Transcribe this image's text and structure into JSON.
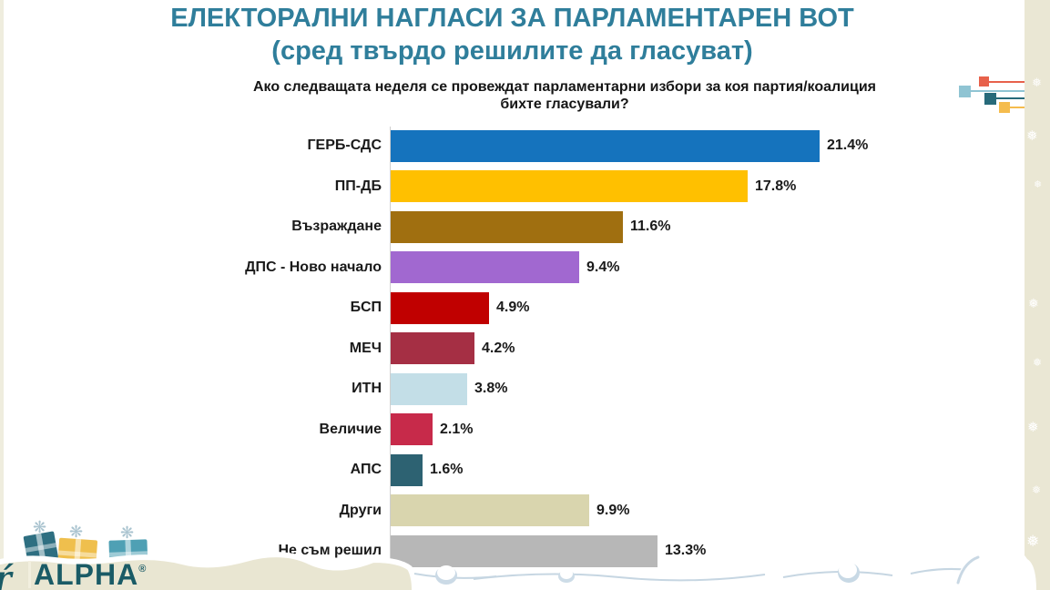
{
  "page": {
    "title_line1": "ЕЛЕКТОРАЛНИ НАГЛАСИ ЗА ПАРЛАМЕНТАРЕН ВОТ",
    "title_line2": "(сред твърдо решилите да гласуват)",
    "question_line1": "Ако следващата неделя се провеждат парламентарни избори за коя партия/коалиция",
    "question_line2": "бихте гласували?"
  },
  "chart_data": {
    "type": "bar",
    "orientation": "horizontal",
    "title": "ЕЛЕКТОРАЛНИ НАГЛАСИ ЗА ПАРЛАМЕНТАРЕН ВОТ (сред твърдо решилите да гласуват)",
    "subtitle": "Ако следващата неделя се провеждат парламентарни избори за коя партия/коалиция бихте гласували?",
    "unit": "%",
    "xlim": [
      0,
      24
    ],
    "grid": false,
    "legend": false,
    "categories": [
      "ГЕРБ-СДС",
      "ПП-ДБ",
      "Възраждане",
      "ДПС - Ново начало",
      "БСП",
      "МЕЧ",
      "ИТН",
      "Величие",
      "АПС",
      "Други",
      "Не съм решил"
    ],
    "values": [
      21.4,
      17.8,
      11.6,
      9.4,
      4.9,
      4.2,
      3.8,
      2.1,
      1.6,
      9.9,
      13.3
    ],
    "rows": [
      {
        "label": "ГЕРБ-СДС",
        "value": 21.4,
        "display": "21.4%",
        "color": "#1573BD"
      },
      {
        "label": "ПП-ДБ",
        "value": 17.8,
        "display": "17.8%",
        "color": "#FFC000"
      },
      {
        "label": "Възраждане",
        "value": 11.6,
        "display": "11.6%",
        "color": "#A06F10"
      },
      {
        "label": "ДПС - Ново начало",
        "value": 9.4,
        "display": "9.4%",
        "color": "#A168D0"
      },
      {
        "label": "БСП",
        "value": 4.9,
        "display": "4.9%",
        "color": "#C00000"
      },
      {
        "label": "МЕЧ",
        "value": 4.2,
        "display": "4.2%",
        "color": "#A52F44"
      },
      {
        "label": "ИТН",
        "value": 3.8,
        "display": "3.8%",
        "color": "#C3DEE7"
      },
      {
        "label": "Величие",
        "value": 2.1,
        "display": "2.1%",
        "color": "#C72A4A"
      },
      {
        "label": "АПС",
        "value": 1.6,
        "display": "1.6%",
        "color": "#2D6272"
      },
      {
        "label": "Други",
        "value": 9.9,
        "display": "9.9%",
        "color": "#D9D5AE"
      },
      {
        "label": "Не съм решил",
        "value": 13.3,
        "display": "13.3%",
        "color": "#B7B7B7"
      }
    ]
  },
  "decor_mark": {
    "items": [
      {
        "name": "light-blue",
        "color": "#8FC4D3"
      },
      {
        "name": "dark-teal",
        "color": "#276A7A"
      },
      {
        "name": "yellow",
        "color": "#F5BC4D"
      },
      {
        "name": "red",
        "color": "#E7614B"
      }
    ]
  },
  "branding": {
    "prefix_glyph": "ŕ",
    "logo_text": "ALPHA",
    "registered_mark": "®"
  },
  "icons": {
    "snowflake": "❅",
    "bow": "❋"
  },
  "colors": {
    "title_teal": "#2F7E9B",
    "cream_strip": "#EAE7D4",
    "logo_teal": "#1A5B66"
  }
}
